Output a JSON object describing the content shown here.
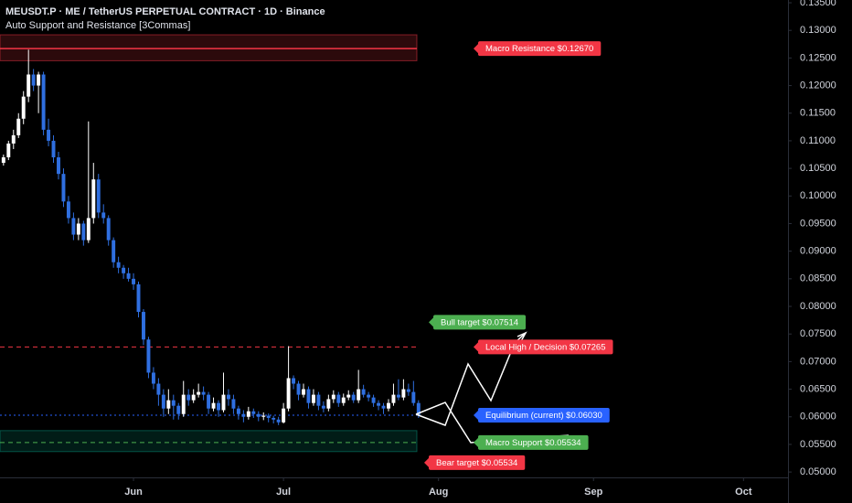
{
  "chart_data": {
    "type": "candlestick",
    "title": "MEUSDT.P · ME / TetherUS PERPETUAL CONTRACT · 1D · Binance",
    "subtitle": "Auto Support and Resistance [3Commas]",
    "up_color": "#ffffff",
    "down_color": "#2f6fe0",
    "x": [
      -26,
      -25,
      -24,
      -23,
      -22,
      -21,
      -20,
      -19,
      -18,
      -17,
      -16,
      -15,
      -14,
      -13,
      -12,
      -11,
      -10,
      -9,
      -8,
      -7,
      -6,
      -5,
      -4,
      -3,
      -2,
      -1,
      0,
      1,
      2,
      3,
      4,
      5,
      6,
      7,
      8,
      9,
      10,
      11,
      12,
      13,
      14,
      15,
      16,
      17,
      18,
      19,
      20,
      21,
      22,
      23,
      24,
      25,
      26,
      27,
      28,
      29,
      30,
      31,
      32,
      33,
      34,
      35,
      36,
      37,
      38,
      39,
      40,
      41,
      42,
      43,
      44,
      45,
      46,
      47,
      48,
      49,
      50,
      51,
      52,
      53,
      54,
      55,
      56,
      57
    ],
    "candles": [
      [
        0.106,
        0.1075,
        0.1055,
        0.107
      ],
      [
        0.107,
        0.11,
        0.1065,
        0.1095
      ],
      [
        0.1095,
        0.112,
        0.1085,
        0.111
      ],
      [
        0.111,
        0.115,
        0.1105,
        0.114
      ],
      [
        0.114,
        0.119,
        0.113,
        0.118
      ],
      [
        0.118,
        0.1265,
        0.117,
        0.122
      ],
      [
        0.122,
        0.123,
        0.119,
        0.12
      ],
      [
        0.12,
        0.1225,
        0.115,
        0.122
      ],
      [
        0.122,
        0.1225,
        0.111,
        0.112
      ],
      [
        0.112,
        0.114,
        0.109,
        0.11
      ],
      [
        0.11,
        0.111,
        0.106,
        0.107
      ],
      [
        0.107,
        0.108,
        0.103,
        0.104
      ],
      [
        0.104,
        0.105,
        0.098,
        0.099
      ],
      [
        0.099,
        0.1,
        0.095,
        0.096
      ],
      [
        0.096,
        0.097,
        0.092,
        0.093
      ],
      [
        0.093,
        0.096,
        0.092,
        0.095
      ],
      [
        0.095,
        0.0955,
        0.091,
        0.092
      ],
      [
        0.092,
        0.1135,
        0.0915,
        0.096
      ],
      [
        0.096,
        0.106,
        0.095,
        0.103
      ],
      [
        0.103,
        0.104,
        0.096,
        0.097
      ],
      [
        0.097,
        0.0985,
        0.095,
        0.096
      ],
      [
        0.096,
        0.0965,
        0.091,
        0.092
      ],
      [
        0.092,
        0.0925,
        0.087,
        0.088
      ],
      [
        0.088,
        0.089,
        0.086,
        0.087
      ],
      [
        0.087,
        0.0875,
        0.085,
        0.086
      ],
      [
        0.086,
        0.087,
        0.0845,
        0.085
      ],
      [
        0.085,
        0.086,
        0.083,
        0.084
      ],
      [
        0.084,
        0.0845,
        0.078,
        0.079
      ],
      [
        0.079,
        0.0795,
        0.073,
        0.074
      ],
      [
        0.074,
        0.0745,
        0.067,
        0.068
      ],
      [
        0.068,
        0.069,
        0.065,
        0.066
      ],
      [
        0.066,
        0.067,
        0.062,
        0.064
      ],
      [
        0.064,
        0.065,
        0.06,
        0.0615
      ],
      [
        0.0615,
        0.065,
        0.0605,
        0.063
      ],
      [
        0.063,
        0.064,
        0.0595,
        0.062
      ],
      [
        0.062,
        0.0625,
        0.0595,
        0.0605
      ],
      [
        0.0605,
        0.0665,
        0.06,
        0.064
      ],
      [
        0.064,
        0.065,
        0.062,
        0.063
      ],
      [
        0.063,
        0.065,
        0.0625,
        0.064
      ],
      [
        0.064,
        0.066,
        0.0635,
        0.0645
      ],
      [
        0.0645,
        0.0655,
        0.063,
        0.064
      ],
      [
        0.064,
        0.0645,
        0.0605,
        0.0615
      ],
      [
        0.0615,
        0.0635,
        0.061,
        0.0625
      ],
      [
        0.0625,
        0.063,
        0.06,
        0.0612
      ],
      [
        0.0612,
        0.068,
        0.0608,
        0.064
      ],
      [
        0.064,
        0.065,
        0.062,
        0.0632
      ],
      [
        0.0632,
        0.064,
        0.0605,
        0.0615
      ],
      [
        0.0615,
        0.062,
        0.0595,
        0.0605
      ],
      [
        0.0605,
        0.0612,
        0.059,
        0.06
      ],
      [
        0.06,
        0.0618,
        0.0595,
        0.061
      ],
      [
        0.061,
        0.0615,
        0.0598,
        0.0605
      ],
      [
        0.0605,
        0.061,
        0.0592,
        0.06
      ],
      [
        0.06,
        0.0608,
        0.0594,
        0.0602
      ],
      [
        0.0602,
        0.0606,
        0.059,
        0.0598
      ],
      [
        0.0598,
        0.0602,
        0.0588,
        0.0595
      ],
      [
        0.0595,
        0.06,
        0.0585,
        0.059
      ],
      [
        0.059,
        0.0625,
        0.0588,
        0.0615
      ],
      [
        0.0615,
        0.0728,
        0.061,
        0.067
      ],
      [
        0.067,
        0.0675,
        0.065,
        0.066
      ],
      [
        0.066,
        0.0665,
        0.063,
        0.064
      ],
      [
        0.064,
        0.066,
        0.0635,
        0.065
      ],
      [
        0.065,
        0.0655,
        0.0615,
        0.0625
      ],
      [
        0.0625,
        0.065,
        0.062,
        0.064
      ],
      [
        0.064,
        0.0645,
        0.0612,
        0.062
      ],
      [
        0.062,
        0.0628,
        0.0608,
        0.0615
      ],
      [
        0.0615,
        0.064,
        0.061,
        0.0632
      ],
      [
        0.0632,
        0.0648,
        0.0625,
        0.064
      ],
      [
        0.064,
        0.0645,
        0.0618,
        0.0625
      ],
      [
        0.0625,
        0.0642,
        0.062,
        0.0635
      ],
      [
        0.0635,
        0.0648,
        0.063,
        0.064
      ],
      [
        0.064,
        0.0645,
        0.0625,
        0.063
      ],
      [
        0.063,
        0.0685,
        0.0625,
        0.065
      ],
      [
        0.065,
        0.0658,
        0.0635,
        0.064
      ],
      [
        0.064,
        0.0645,
        0.0628,
        0.0635
      ],
      [
        0.0635,
        0.064,
        0.0618,
        0.0625
      ],
      [
        0.0625,
        0.063,
        0.0612,
        0.062
      ],
      [
        0.062,
        0.0625,
        0.0605,
        0.0615
      ],
      [
        0.0615,
        0.0632,
        0.061,
        0.0625
      ],
      [
        0.0625,
        0.066,
        0.062,
        0.064
      ],
      [
        0.064,
        0.0668,
        0.063,
        0.0635
      ],
      [
        0.0635,
        0.0668,
        0.063,
        0.065
      ],
      [
        0.065,
        0.066,
        0.0638,
        0.0645
      ],
      [
        0.0645,
        0.0665,
        0.062,
        0.0625
      ],
      [
        0.0625,
        0.063,
        0.0598,
        0.0603
      ]
    ],
    "xlim": [
      -26.7,
      130.9
    ],
    "xticks": [
      {
        "value": 0,
        "label": "Jun"
      },
      {
        "value": 30,
        "label": "Jul"
      },
      {
        "value": 61,
        "label": "Aug"
      },
      {
        "value": 92,
        "label": "Sep"
      },
      {
        "value": 122,
        "label": "Oct"
      }
    ],
    "ylim": [
      0.0477,
      0.1355
    ],
    "yticks": [
      {
        "value": 0.05,
        "label": "0.05000"
      },
      {
        "value": 0.055,
        "label": "0.05500"
      },
      {
        "value": 0.06,
        "label": "0.06000"
      },
      {
        "value": 0.065,
        "label": "0.06500"
      },
      {
        "value": 0.07,
        "label": "0.07000"
      },
      {
        "value": 0.075,
        "label": "0.07500"
      },
      {
        "value": 0.08,
        "label": "0.08000"
      },
      {
        "value": 0.085,
        "label": "0.08500"
      },
      {
        "value": 0.09,
        "label": "0.09000"
      },
      {
        "value": 0.095,
        "label": "0.09500"
      },
      {
        "value": 0.1,
        "label": "0.10000"
      },
      {
        "value": 0.105,
        "label": "0.10500"
      },
      {
        "value": 0.11,
        "label": "0.11000"
      },
      {
        "value": 0.115,
        "label": "0.11500"
      },
      {
        "value": 0.12,
        "label": "0.12000"
      },
      {
        "value": 0.125,
        "label": "0.12500"
      },
      {
        "value": 0.13,
        "label": "0.13000"
      },
      {
        "value": 0.135,
        "label": "0.13500"
      }
    ],
    "zones": [
      {
        "range": [
          0.1245,
          0.1292
        ],
        "color": "#f23645"
      },
      {
        "range": [
          0.0537,
          0.0575
        ],
        "color": "#089981"
      }
    ],
    "levels": [
      {
        "label": "Macro Resistance $0.12670",
        "value": 0.1267,
        "color": "#f23645",
        "style": "solid"
      },
      {
        "label": "Local High / Decision $0.07265",
        "value": 0.07265,
        "color": "#f23645",
        "style": "dashed"
      },
      {
        "label": "Equilibrium (current) $0.06030",
        "value": 0.0603,
        "color": "#2962ff",
        "style": "dotted"
      },
      {
        "label": "Macro Support $0.05534",
        "value": 0.05534,
        "color": "#4caf50",
        "style": "dashed"
      }
    ],
    "targets": [
      {
        "label": "Bull target $0.07514",
        "value": 0.07514,
        "color": "#4caf50"
      },
      {
        "label": "Bear target $0.05534",
        "value": 0.05534,
        "color": "#f23645"
      }
    ]
  }
}
